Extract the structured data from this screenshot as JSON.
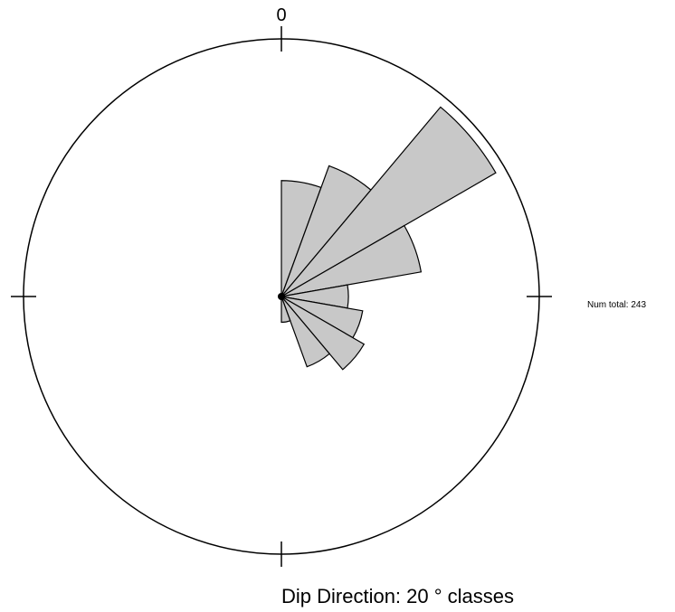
{
  "chart_data": {
    "type": "rose",
    "title": "Dip Direction: 20 ° classes",
    "class_width_deg": 20,
    "north_label": "0",
    "total_label": "Num total: 243",
    "total": 243,
    "bins": [
      {
        "from": 0,
        "to": 20,
        "value": 0.45
      },
      {
        "from": 20,
        "to": 40,
        "value": 0.54
      },
      {
        "from": 40,
        "to": 60,
        "value": 0.96
      },
      {
        "from": 60,
        "to": 80,
        "value": 0.55
      },
      {
        "from": 80,
        "to": 100,
        "value": 0.26
      },
      {
        "from": 100,
        "to": 120,
        "value": 0.32
      },
      {
        "from": 120,
        "to": 140,
        "value": 0.37
      },
      {
        "from": 140,
        "to": 160,
        "value": 0.29
      },
      {
        "from": 160,
        "to": 180,
        "value": 0.1
      },
      {
        "from": 180,
        "to": 200,
        "value": 0.0
      },
      {
        "from": 200,
        "to": 220,
        "value": 0.0
      },
      {
        "from": 220,
        "to": 240,
        "value": 0.0
      },
      {
        "from": 240,
        "to": 260,
        "value": 0.0
      },
      {
        "from": 260,
        "to": 280,
        "value": 0.0
      },
      {
        "from": 280,
        "to": 300,
        "value": 0.0
      },
      {
        "from": 300,
        "to": 320,
        "value": 0.0
      },
      {
        "from": 320,
        "to": 340,
        "value": 0.0
      },
      {
        "from": 340,
        "to": 360,
        "value": 0.0
      }
    ],
    "colors": {
      "petal_fill": "#c8c8c8",
      "stroke": "#000000",
      "background": "#ffffff"
    }
  }
}
